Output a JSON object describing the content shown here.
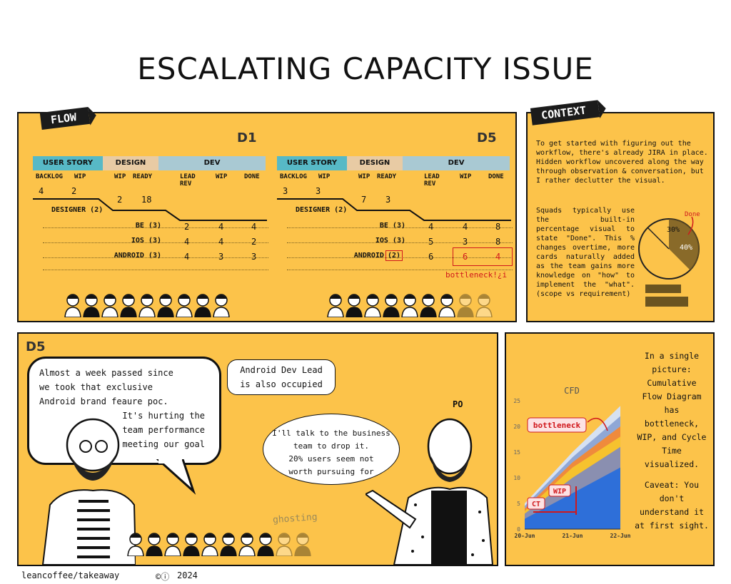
{
  "title": "ESCALATING CAPACITY ISSUE",
  "flow": {
    "ribbon": "FLOW",
    "boards": [
      {
        "day": "D1",
        "groups": {
          "story": "USER STORY",
          "design": "DESIGN",
          "dev": "DEV"
        },
        "cols": {
          "backlog": "BACKLOG",
          "wip": "WIP",
          "design_wip": "WIP",
          "ready": "READY",
          "lead_rev": "LEAD REV",
          "dev_wip": "WIP",
          "done": "DONE"
        },
        "top": {
          "backlog": "4",
          "wip": "2",
          "design_wip": "2",
          "ready": "18"
        },
        "designer": "DESIGNER (2)",
        "rows": [
          {
            "label": "BE (3)",
            "lead_rev": "2",
            "wip": "4",
            "done": "4"
          },
          {
            "label": "IOS (3)",
            "lead_rev": "4",
            "wip": "4",
            "done": "2"
          },
          {
            "label": "ANDROID (3)",
            "lead_rev": "4",
            "wip": "3",
            "done": "3"
          }
        ]
      },
      {
        "day": "D5",
        "groups": {
          "story": "USER STORY",
          "design": "DESIGN",
          "dev": "DEV"
        },
        "cols": {
          "backlog": "BACKLOG",
          "wip": "WIP",
          "design_wip": "WIP",
          "ready": "READY",
          "lead_rev": "LEAD REV",
          "dev_wip": "WIP",
          "done": "DONE"
        },
        "top": {
          "backlog": "3",
          "wip": "3",
          "design_wip": "7",
          "ready": "3"
        },
        "designer": "DESIGNER (2)",
        "rows": [
          {
            "label": "BE (3)",
            "lead_rev": "4",
            "wip": "4",
            "done": "8"
          },
          {
            "label": "IOS (3)",
            "lead_rev": "5",
            "wip": "3",
            "done": "8"
          },
          {
            "label": "ANDROID",
            "label_boxed": "(2)",
            "lead_rev": "6",
            "wip": "6",
            "done": "4"
          }
        ],
        "note": "bottleneck!¿i"
      }
    ]
  },
  "context": {
    "ribbon": "CONTEXT",
    "para1": "To get started with figuring out the workflow, there's already JIRA in place. Hidden workflow uncovered along the way through observation & conversation, but I rather declutter the visual.",
    "para2": "Squads typically use the built-in percentage visual to state \"Done\". This % changes overtime, more cards naturally added as the team gains more knowledge on \"how\" to implement the \"what\". (scope vs requirement)",
    "pie_labels": {
      "a": "30%",
      "b": "40%",
      "done": "Done"
    }
  },
  "scene": {
    "day": "D5",
    "bubble1": [
      "Almost a week passed since",
      "we took that exclusive",
      "Android brand feaure poc.",
      "It's hurting the",
      "team performance",
      "in meeting our goal"
    ],
    "bubble2": [
      "Android Dev Lead",
      "is also occupied"
    ],
    "bubble3": [
      "I'll talk to the business",
      "team to drop it.",
      "20% users seem not",
      "worth pursuing for"
    ],
    "po_label": "PO",
    "ghosting": "ghosting"
  },
  "cfd": {
    "text": [
      "In a single",
      "picture:",
      "Cumulative",
      "Flow Diagram",
      "has",
      "bottleneck,",
      "WIP, and Cycle",
      "Time",
      "visualized.",
      "",
      "Caveat: You",
      "don't",
      "understand it",
      "at first sight."
    ],
    "labels": {
      "bottleneck": "bottleneck",
      "wip": "WIP",
      "ct": "CT"
    }
  },
  "chart_data": {
    "type": "area",
    "title": "CFD",
    "x": [
      "20-Jun",
      "21-Jun",
      "22-Jun"
    ],
    "ylim": [
      0,
      25
    ],
    "yticks": [
      0,
      5,
      10,
      15,
      20,
      25
    ],
    "series": [
      {
        "values": [
          2,
          7,
          12
        ]
      },
      {
        "values": [
          3,
          10,
          16
        ]
      },
      {
        "values": [
          3.5,
          12,
          18
        ]
      },
      {
        "values": [
          4,
          13,
          20
        ]
      },
      {
        "values": [
          4.5,
          14,
          22
        ]
      },
      {
        "values": [
          5,
          15,
          24
        ]
      }
    ],
    "colors": [
      "#2e6fd9",
      "#8a8fb0",
      "#f6c22e",
      "#ef8a3c",
      "#8fa7d6",
      "#d6e1f2"
    ]
  },
  "footer": {
    "brand": "leancoffee/takeaway",
    "year": "2024"
  }
}
